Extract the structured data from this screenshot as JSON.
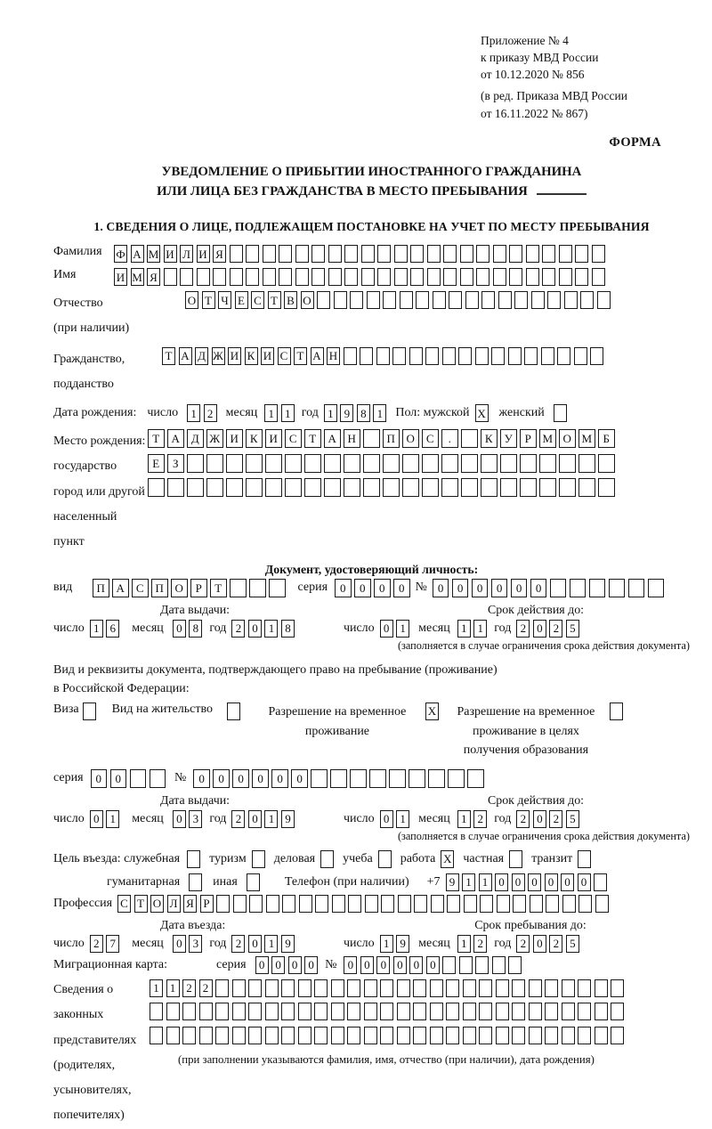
{
  "colors": {
    "ink": "#1a1a1a",
    "paper": "#ffffff"
  },
  "header": {
    "line1": "Приложение № 4",
    "line2": "к приказу МВД России",
    "line3": "от 10.12.2020 № 856",
    "line4": "(в ред. Приказа МВД России",
    "line5": "от 16.11.2022 № 867)",
    "forma": "ФОРМА"
  },
  "title": {
    "line1": "УВЕДОМЛЕНИЕ О ПРИБЫТИИ ИНОСТРАННОГО ГРАЖДАНИНА",
    "line2": "ИЛИ ЛИЦА БЕЗ ГРАЖДАНСТВА В МЕСТО ПРЕБЫВАНИЯ"
  },
  "section1_heading": "1. СВЕДЕНИЯ О ЛИЦЕ, ПОДЛЕЖАЩЕМ ПОСТАНОВКЕ НА УЧЕТ ПО МЕСТУ ПРЕБЫВАНИЯ",
  "labels": {
    "day": "число",
    "month": "месяц",
    "year": "год"
  },
  "person": {
    "surname": {
      "label": "Фамилия",
      "text": "ФАМИЛИЯ",
      "count": 30
    },
    "name": {
      "label": "Имя",
      "text": "ИМЯ",
      "count": 30
    },
    "patronymic": {
      "label1": "Отчество",
      "label2": "(при наличии)",
      "text": "ОТЧЕСТВО",
      "count": 26
    },
    "citizenship": {
      "label1": "Гражданство,",
      "label2": "подданство",
      "text": "ТАДЖИКИСТАН",
      "count": 27
    },
    "birth_date": {
      "label": "Дата рождения:",
      "day": {
        "text": "12",
        "count": 2
      },
      "month": {
        "text": "11",
        "count": 2
      },
      "year": {
        "text": "1981",
        "count": 4
      },
      "sex_label": "Пол: мужской",
      "male_checked": "X",
      "female_label": "женский",
      "female_checked": ""
    },
    "birth_place": {
      "label1": "Место рождения:",
      "label2": "государство",
      "label3": "город или другой",
      "label4": "населенный пункт",
      "row1": {
        "text": "ТАДЖИКИСТАН ПОС. КУРМОМБ",
        "count": 24
      },
      "row2": {
        "text": "ЕЗ",
        "count": 24
      },
      "row3": {
        "text": "",
        "count": 24
      }
    }
  },
  "identity_doc": {
    "heading": "Документ, удостоверяющий личность:",
    "kind_label": "вид",
    "kind": {
      "text": "ПАСПОРТ",
      "count": 10
    },
    "series_label": "серия",
    "series": {
      "text": "0000",
      "count": 4
    },
    "number_label": "№",
    "number": {
      "text": "000000",
      "count": 12
    },
    "issue_header": "Дата выдачи:",
    "issue_day": {
      "text": "16",
      "count": 2
    },
    "issue_month": {
      "text": "08",
      "count": 2
    },
    "issue_year": {
      "text": "2018",
      "count": 4
    },
    "valid_header": "Срок действия до:",
    "valid_day": {
      "text": "01",
      "count": 2
    },
    "valid_month": {
      "text": "11",
      "count": 2
    },
    "valid_year": {
      "text": "2025",
      "count": 4
    },
    "note": "(заполняется в случае ограничения срока действия документа)"
  },
  "residence_doc": {
    "intro1": "Вид и реквизиты документа, подтверждающего право на пребывание (проживание)",
    "intro2": "в Российской Федерации:",
    "options": [
      {
        "label": "Виза",
        "checked": ""
      },
      {
        "label": "Вид на жительство",
        "checked": ""
      },
      {
        "label": "Разрешение на временное проживание",
        "checked": "X"
      },
      {
        "label": "Разрешение на временное проживание в целях получения образования",
        "checked": ""
      }
    ],
    "series_label": "серия",
    "series": {
      "text": "00",
      "count": 4
    },
    "number_label": "№",
    "number": {
      "text": "000000",
      "count": 15
    },
    "issue_header": "Дата выдачи:",
    "issue_day": {
      "text": "01",
      "count": 2
    },
    "issue_month": {
      "text": "03",
      "count": 2
    },
    "issue_year": {
      "text": "2019",
      "count": 4
    },
    "valid_header": "Срок действия до:",
    "valid_day": {
      "text": "01",
      "count": 2
    },
    "valid_month": {
      "text": "12",
      "count": 2
    },
    "valid_year": {
      "text": "2025",
      "count": 4
    },
    "note": "(заполняется в случае ограничения срока действия документа)"
  },
  "visit": {
    "purpose_label": "Цель въезда: служебная",
    "purposes": [
      {
        "label": "туризм",
        "checked": ""
      },
      {
        "label": "деловая",
        "checked": ""
      },
      {
        "label": "учеба",
        "checked": ""
      },
      {
        "label": "работа",
        "checked": "X"
      },
      {
        "label": "частная",
        "checked": ""
      },
      {
        "label": "транзит",
        "checked": ""
      }
    ],
    "official_checked": "",
    "humanitarian_label": "гуманитарная",
    "humanitarian_checked": "",
    "other_label": "иная",
    "other_checked": "",
    "phone_label": "Телефон (при наличии)",
    "phone_prefix": "+7",
    "phone": {
      "text": "911000000",
      "count": 10
    },
    "profession_label": "Профессия",
    "profession": {
      "text": "СТОЛЯР",
      "count": 30
    },
    "entry_header": "Дата въезда:",
    "entry_day": {
      "text": "27",
      "count": 2
    },
    "entry_month": {
      "text": "03",
      "count": 2
    },
    "entry_year": {
      "text": "2019",
      "count": 4
    },
    "stay_header": "Срок пребывания до:",
    "stay_day": {
      "text": "19",
      "count": 2
    },
    "stay_month": {
      "text": "12",
      "count": 2
    },
    "stay_year": {
      "text": "2025",
      "count": 4
    },
    "migration_label": "Миграционная карта:",
    "mig_series_label": "серия",
    "mig_series": {
      "text": "0000",
      "count": 4
    },
    "mig_number_label": "№",
    "mig_number": {
      "text": "000000",
      "count": 11
    }
  },
  "representatives": {
    "label1": "Сведения о",
    "label2": "законных",
    "label3": "представителях",
    "label4": "(родителях,",
    "label5": "усыновителях,",
    "label6": "попечителях)",
    "row1": {
      "text": "1122",
      "count": 29
    },
    "row2": {
      "text": "",
      "count": 29
    },
    "row3": {
      "text": "",
      "count": 29
    },
    "note": "(при заполнении указываются фамилия, имя, отчество (при наличии), дата рождения)"
  }
}
